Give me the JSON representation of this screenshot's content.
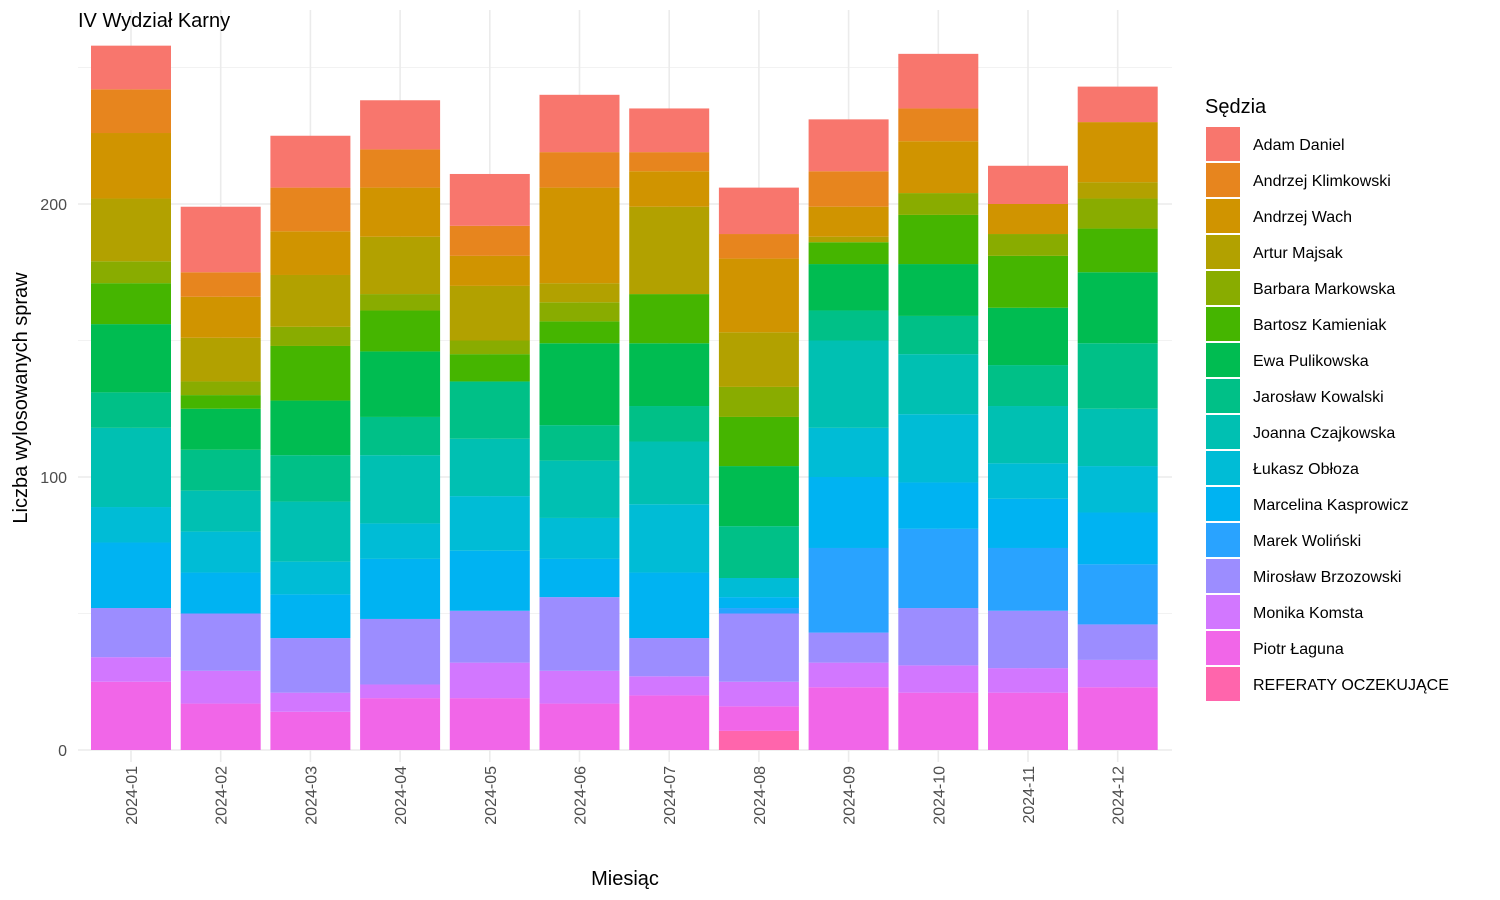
{
  "chart_data": {
    "type": "bar",
    "stacked": true,
    "title": "IV Wydział Karny",
    "xlabel": "Miesiąc",
    "ylabel": "Liczba wylosowanych spraw",
    "ylim": [
      0,
      260
    ],
    "yticks": [
      0,
      100,
      200
    ],
    "grid": true,
    "legend": {
      "title": "Sędzia",
      "position": "right"
    },
    "categories": [
      "2024-01",
      "2024-02",
      "2024-03",
      "2024-04",
      "2024-05",
      "2024-06",
      "2024-07",
      "2024-08",
      "2024-09",
      "2024-10",
      "2024-11",
      "2024-12"
    ],
    "series": [
      {
        "name": "Adam Daniel",
        "color": "#F8766D",
        "values": [
          16,
          24,
          19,
          18,
          19,
          21,
          16,
          17,
          19,
          20,
          14,
          13
        ]
      },
      {
        "name": "Andrzej Klimkowski",
        "color": "#E7851E",
        "values": [
          16,
          9,
          16,
          14,
          11,
          13,
          7,
          9,
          13,
          12,
          0,
          0
        ]
      },
      {
        "name": "Andrzej Wach",
        "color": "#D09400",
        "values": [
          24,
          15,
          16,
          18,
          11,
          35,
          13,
          27,
          11,
          19,
          11,
          22
        ]
      },
      {
        "name": "Artur Majsak",
        "color": "#B2A100",
        "values": [
          23,
          16,
          19,
          21,
          20,
          7,
          32,
          20,
          2,
          0,
          0,
          6
        ]
      },
      {
        "name": "Barbara Markowska",
        "color": "#89AC00",
        "values": [
          8,
          5,
          7,
          6,
          5,
          7,
          0,
          11,
          0,
          8,
          8,
          11
        ]
      },
      {
        "name": "Bartosz Kamieniak",
        "color": "#45B500",
        "values": [
          15,
          5,
          20,
          15,
          10,
          8,
          18,
          18,
          8,
          18,
          19,
          16
        ]
      },
      {
        "name": "Ewa Pulikowska",
        "color": "#00BC51",
        "values": [
          25,
          15,
          20,
          24,
          0,
          30,
          23,
          22,
          17,
          19,
          21,
          26
        ]
      },
      {
        "name": "Jarosław Kowalski",
        "color": "#00C087",
        "values": [
          13,
          15,
          17,
          14,
          21,
          13,
          13,
          19,
          11,
          14,
          15,
          24
        ]
      },
      {
        "name": "Joanna Czajkowska",
        "color": "#00C0B2",
        "values": [
          29,
          15,
          22,
          25,
          21,
          21,
          23,
          0,
          32,
          22,
          21,
          21
        ]
      },
      {
        "name": "Łukasz Obłoza",
        "color": "#00BCD6",
        "values": [
          13,
          15,
          12,
          13,
          20,
          15,
          25,
          7,
          18,
          25,
          13,
          17
        ]
      },
      {
        "name": "Marcelina Kasprowicz",
        "color": "#00B3F2",
        "values": [
          24,
          15,
          16,
          22,
          22,
          14,
          24,
          4,
          26,
          17,
          18,
          19
        ]
      },
      {
        "name": "Marek Woliński",
        "color": "#29A3FF",
        "values": [
          0,
          0,
          0,
          0,
          0,
          0,
          0,
          2,
          31,
          29,
          23,
          22
        ]
      },
      {
        "name": "Mirosław Brzozowski",
        "color": "#9C8DFF",
        "values": [
          18,
          21,
          20,
          24,
          19,
          27,
          14,
          25,
          11,
          21,
          21,
          13
        ]
      },
      {
        "name": "Monika Komsta",
        "color": "#D277FF",
        "values": [
          9,
          12,
          7,
          5,
          13,
          12,
          7,
          9,
          9,
          10,
          9,
          10
        ]
      },
      {
        "name": "Piotr Łaguna",
        "color": "#F166E8",
        "values": [
          25,
          17,
          14,
          19,
          19,
          17,
          20,
          9,
          23,
          21,
          21,
          23
        ]
      },
      {
        "name": "REFERATY OCZEKUJĄCE",
        "color": "#FF65AC",
        "values": [
          0,
          0,
          0,
          0,
          0,
          0,
          0,
          7,
          0,
          0,
          0,
          0
        ]
      }
    ]
  }
}
